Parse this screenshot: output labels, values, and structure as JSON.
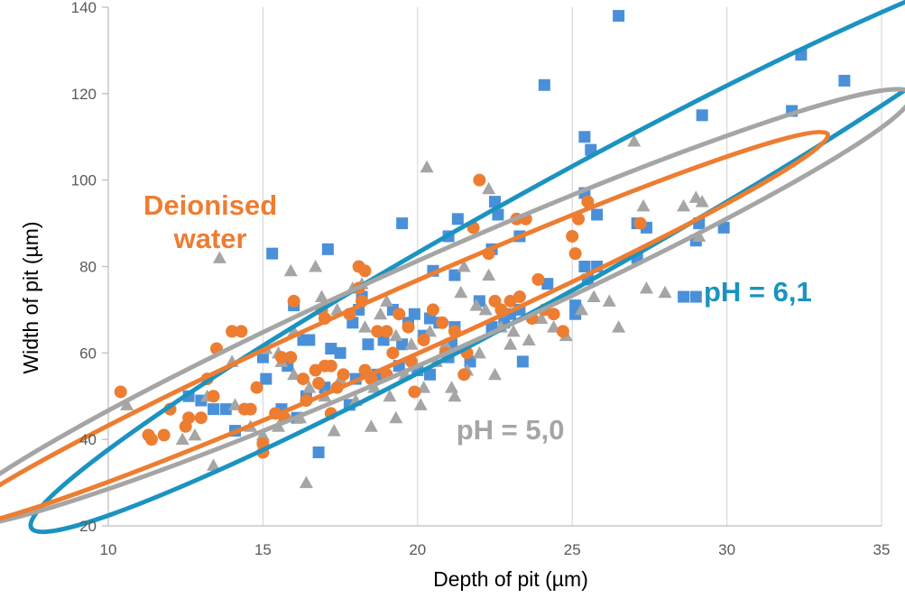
{
  "chart_data": {
    "type": "scatter",
    "title": "",
    "xlabel": "Depth of pit (µm)",
    "ylabel": "Width of pit (µm)",
    "xlim": [
      10,
      35
    ],
    "ylim": [
      20,
      140
    ],
    "xticks": [
      10,
      15,
      20,
      25,
      30,
      35
    ],
    "yticks": [
      20,
      40,
      60,
      80,
      100,
      120,
      140
    ],
    "grid": "vertical",
    "colors": {
      "blue": "#4a90d9",
      "gray": "#a5a5a5",
      "orange": "#ed7d31",
      "blue_ellipse": "#1b93c1",
      "gray_ellipse": "#a5a5a5",
      "orange_ellipse": "#ed7d31"
    },
    "series": [
      {
        "marker": "square",
        "color": "#4a90d9",
        "points": [
          [
            26.5,
            138
          ],
          [
            32.4,
            129
          ],
          [
            33.8,
            123
          ],
          [
            24.1,
            122
          ],
          [
            32.1,
            116
          ],
          [
            29.2,
            115
          ],
          [
            25.4,
            110
          ],
          [
            25.6,
            107
          ],
          [
            25.4,
            97
          ],
          [
            22.5,
            95
          ],
          [
            21.3,
            91
          ],
          [
            25.8,
            92
          ],
          [
            21.0,
            87
          ],
          [
            23.3,
            87
          ],
          [
            19.5,
            90
          ],
          [
            22.6,
            92
          ],
          [
            29.1,
            90
          ],
          [
            29.9,
            89
          ],
          [
            27.4,
            89
          ],
          [
            27.1,
            90
          ],
          [
            29.0,
            86
          ],
          [
            15.3,
            83
          ],
          [
            17.1,
            84
          ],
          [
            22.4,
            84
          ],
          [
            21.2,
            78
          ],
          [
            25.4,
            80
          ],
          [
            25.8,
            80
          ],
          [
            20.5,
            79
          ],
          [
            18.2,
            73
          ],
          [
            22.0,
            72
          ],
          [
            24.2,
            76
          ],
          [
            25.5,
            77
          ],
          [
            25.1,
            71
          ],
          [
            16.0,
            71
          ],
          [
            17.9,
            67
          ],
          [
            18.1,
            70
          ],
          [
            19.2,
            70
          ],
          [
            19.7,
            67
          ],
          [
            19.9,
            69
          ],
          [
            20.4,
            68
          ],
          [
            20.7,
            67
          ],
          [
            21.2,
            66
          ],
          [
            22.4,
            66
          ],
          [
            22.8,
            67
          ],
          [
            23.0,
            69
          ],
          [
            23.3,
            70
          ],
          [
            25.1,
            69
          ],
          [
            27.1,
            82
          ],
          [
            28.6,
            73
          ],
          [
            29.0,
            73
          ],
          [
            16.3,
            63
          ],
          [
            16.5,
            63
          ],
          [
            17.2,
            61
          ],
          [
            17.5,
            60
          ],
          [
            18.4,
            62
          ],
          [
            18.9,
            63
          ],
          [
            19.5,
            62
          ],
          [
            20.2,
            64
          ],
          [
            21.1,
            62
          ],
          [
            15.0,
            59
          ],
          [
            15.8,
            57
          ],
          [
            16.4,
            50
          ],
          [
            17.0,
            52
          ],
          [
            18.0,
            54
          ],
          [
            18.7,
            55
          ],
          [
            19.4,
            57
          ],
          [
            20.0,
            56
          ],
          [
            20.4,
            55
          ],
          [
            21.0,
            59
          ],
          [
            21.7,
            58
          ],
          [
            23.4,
            58
          ],
          [
            15.1,
            54
          ],
          [
            15.6,
            47
          ],
          [
            16.1,
            45
          ],
          [
            17.8,
            48
          ],
          [
            13.4,
            47
          ],
          [
            13.8,
            47
          ],
          [
            14.1,
            42
          ],
          [
            12.6,
            50
          ],
          [
            13.0,
            49
          ],
          [
            16.8,
            37
          ]
        ]
      },
      {
        "marker": "triangle",
        "color": "#a5a5a5",
        "points": [
          [
            10.6,
            48
          ],
          [
            12.4,
            40
          ],
          [
            13.4,
            34
          ],
          [
            13.6,
            82
          ],
          [
            16.4,
            30
          ],
          [
            20.3,
            103
          ],
          [
            22.3,
            98
          ],
          [
            27.0,
            109
          ],
          [
            29.0,
            96
          ],
          [
            29.2,
            95
          ],
          [
            27.3,
            94
          ],
          [
            28.6,
            94
          ],
          [
            29.1,
            87
          ],
          [
            16.9,
            73
          ],
          [
            17.9,
            75
          ],
          [
            18.3,
            66
          ],
          [
            18.8,
            69
          ],
          [
            19.3,
            64
          ],
          [
            19.8,
            62
          ],
          [
            20.4,
            65
          ],
          [
            20.9,
            62
          ],
          [
            21.4,
            74
          ],
          [
            21.9,
            71
          ],
          [
            22.2,
            70
          ],
          [
            22.7,
            66
          ],
          [
            23.1,
            65
          ],
          [
            23.6,
            63
          ],
          [
            24.0,
            68
          ],
          [
            24.4,
            66
          ],
          [
            24.8,
            64
          ],
          [
            25.3,
            70
          ],
          [
            25.7,
            73
          ],
          [
            26.2,
            72
          ],
          [
            15.1,
            61
          ],
          [
            15.6,
            58
          ],
          [
            16.0,
            55
          ],
          [
            16.5,
            52
          ],
          [
            17.0,
            50
          ],
          [
            17.5,
            54
          ],
          [
            18.0,
            49
          ],
          [
            18.6,
            52
          ],
          [
            19.1,
            50
          ],
          [
            19.6,
            55
          ],
          [
            20.2,
            52
          ],
          [
            20.6,
            58
          ],
          [
            21.1,
            52
          ],
          [
            21.6,
            56
          ],
          [
            22.0,
            60
          ],
          [
            22.5,
            55
          ],
          [
            23.0,
            62
          ],
          [
            14.1,
            48
          ],
          [
            14.6,
            43
          ],
          [
            15.0,
            41
          ],
          [
            15.5,
            43
          ],
          [
            16.2,
            45
          ],
          [
            17.3,
            42
          ],
          [
            18.5,
            43
          ],
          [
            19.3,
            45
          ],
          [
            20.1,
            48
          ],
          [
            21.2,
            50
          ],
          [
            13.2,
            50
          ],
          [
            12.8,
            41
          ],
          [
            14.0,
            58
          ],
          [
            15.5,
            60
          ],
          [
            16.0,
            65
          ],
          [
            17.4,
            70
          ],
          [
            18.2,
            76
          ],
          [
            19.0,
            72
          ],
          [
            21.5,
            80
          ],
          [
            22.3,
            78
          ],
          [
            16.7,
            80
          ],
          [
            15.9,
            79
          ],
          [
            26.5,
            66
          ],
          [
            27.4,
            75
          ],
          [
            28.0,
            74
          ]
        ]
      },
      {
        "marker": "circle",
        "color": "#ed7d31",
        "points": [
          [
            10.4,
            51
          ],
          [
            11.3,
            41
          ],
          [
            11.4,
            40
          ],
          [
            11.8,
            41
          ],
          [
            12.0,
            47
          ],
          [
            12.5,
            43
          ],
          [
            13.0,
            45
          ],
          [
            13.2,
            54
          ],
          [
            13.4,
            50
          ],
          [
            14.0,
            65
          ],
          [
            14.4,
            47
          ],
          [
            14.6,
            47
          ],
          [
            14.8,
            52
          ],
          [
            15.0,
            39
          ],
          [
            15.0,
            37
          ],
          [
            15.4,
            46
          ],
          [
            15.7,
            45
          ],
          [
            15.9,
            59
          ],
          [
            16.0,
            72
          ],
          [
            16.3,
            54
          ],
          [
            16.7,
            56
          ],
          [
            16.8,
            53
          ],
          [
            16.9,
            70
          ],
          [
            17.0,
            57
          ],
          [
            17.0,
            68
          ],
          [
            17.2,
            57
          ],
          [
            17.4,
            52
          ],
          [
            17.6,
            55
          ],
          [
            17.8,
            69
          ],
          [
            18.1,
            80
          ],
          [
            18.3,
            79
          ],
          [
            18.1,
            75
          ],
          [
            18.2,
            72
          ],
          [
            18.5,
            54
          ],
          [
            18.7,
            65
          ],
          [
            19.0,
            55
          ],
          [
            19.2,
            60
          ],
          [
            19.4,
            69
          ],
          [
            19.7,
            66
          ],
          [
            19.9,
            51
          ],
          [
            20.2,
            63
          ],
          [
            20.5,
            70
          ],
          [
            20.8,
            67
          ],
          [
            21.2,
            65
          ],
          [
            21.6,
            60
          ],
          [
            21.8,
            89
          ],
          [
            22.0,
            100
          ],
          [
            22.3,
            83
          ],
          [
            22.5,
            72
          ],
          [
            22.7,
            70
          ],
          [
            23.0,
            72
          ],
          [
            23.3,
            73
          ],
          [
            23.5,
            91
          ],
          [
            23.2,
            91
          ],
          [
            23.7,
            68
          ],
          [
            23.9,
            77
          ],
          [
            24.1,
            70
          ],
          [
            24.4,
            69
          ],
          [
            24.7,
            65
          ],
          [
            25.0,
            87
          ],
          [
            25.1,
            83
          ],
          [
            25.2,
            91
          ],
          [
            25.5,
            95
          ],
          [
            27.2,
            90
          ],
          [
            21.5,
            55
          ],
          [
            20.9,
            60
          ],
          [
            19.8,
            58
          ],
          [
            19.0,
            65
          ],
          [
            18.3,
            56
          ],
          [
            17.2,
            46
          ],
          [
            16.4,
            49
          ],
          [
            15.6,
            59
          ],
          [
            14.3,
            65
          ],
          [
            13.5,
            61
          ],
          [
            12.6,
            45
          ]
        ]
      }
    ],
    "ellipses": [
      {
        "color": "#1b93c1",
        "cx": 24.05,
        "cy": 85.1,
        "rx": 12.2,
        "ry": 30,
        "rotation_deg": -29
      },
      {
        "color": "#a5a5a5",
        "cx": 20.4,
        "cy": 70.4,
        "rx": 11.0,
        "ry": 26.5,
        "rotation_deg": -24
      },
      {
        "color": "#ed7d31",
        "cx": 19.1,
        "cy": 65.5,
        "rx": 10.0,
        "ry": 18.5,
        "rotation_deg": -24
      }
    ],
    "annotations": [
      {
        "lines": [
          "Deionised",
          "water"
        ],
        "color": "#ed7d31",
        "x": 13.3,
        "y": 92
      },
      {
        "lines": [
          "pH = 6,1"
        ],
        "color": "#1b93c1",
        "x": 31.0,
        "y": 72
      },
      {
        "lines": [
          "pH = 5,0"
        ],
        "color": "#a5a5a5",
        "x": 23.0,
        "y": 40
      }
    ]
  }
}
